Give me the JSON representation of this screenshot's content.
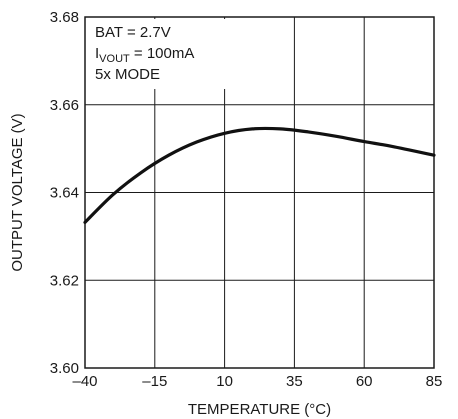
{
  "chart_data": {
    "type": "line",
    "title": "",
    "xlabel": "TEMPERATURE (°C)",
    "ylabel": "OUTPUT VOLTAGE (V)",
    "xlim": [
      -40,
      85
    ],
    "ylim": [
      3.6,
      3.68
    ],
    "x_ticks": [
      -40,
      -15,
      10,
      35,
      60,
      85
    ],
    "x_tick_labels": [
      "–40",
      "–15",
      "10",
      "35",
      "60",
      "85"
    ],
    "y_ticks": [
      3.6,
      3.62,
      3.64,
      3.66,
      3.68
    ],
    "y_tick_labels": [
      "3.60",
      "3.62",
      "3.64",
      "3.66",
      "3.68"
    ],
    "grid": true,
    "legend": "none",
    "annotations": {
      "line1": "BAT = 2.7V",
      "line2_main": "I",
      "line2_sub": "VOUT",
      "line2_rest": " = 100mA",
      "line3": "5x MODE"
    },
    "series": [
      {
        "line_color": "#111111",
        "x": [
          -40,
          -30,
          -20,
          -10,
          0,
          10,
          20,
          30,
          40,
          50,
          60,
          70,
          85
        ],
        "y": [
          3.6332,
          3.6395,
          3.6445,
          3.6485,
          3.6515,
          3.6535,
          3.6545,
          3.6545,
          3.6538,
          3.6528,
          3.6516,
          3.6505,
          3.6485
        ]
      }
    ]
  }
}
